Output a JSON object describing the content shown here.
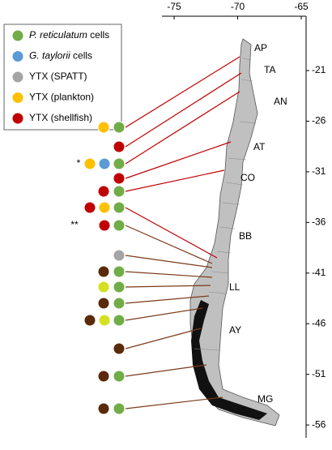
{
  "map": {
    "lon_ticks": [
      -75,
      -70,
      -65
    ],
    "lat_ticks": [
      -21,
      -26,
      -31,
      -36,
      -41,
      -46,
      -51,
      -56
    ],
    "legend": [
      {
        "italic": "P. reticulatum",
        "text": "cells",
        "color": "#70ad47"
      },
      {
        "italic": "G. taylorii",
        "text": "cells",
        "color": "#5b9bd5"
      },
      {
        "text": "YTX (SPATT)",
        "color": "#a5a5a5"
      },
      {
        "text": "YTX (plankton)",
        "color": "#ffc000"
      },
      {
        "text": "YTX (shellfish)",
        "color": "#c00000"
      }
    ],
    "regions": [
      "AP",
      "TA",
      "AN",
      "AT",
      "CO",
      "BB",
      "LL",
      "AY",
      "MG"
    ],
    "marks": [
      "*",
      "**"
    ]
  }
}
